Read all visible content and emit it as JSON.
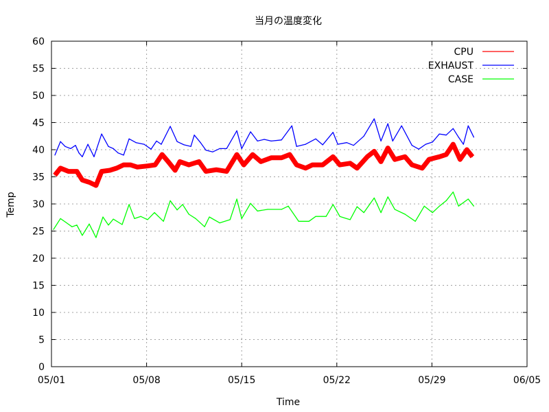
{
  "chart_data": {
    "type": "line",
    "title": "当月の温度変化",
    "xlabel": "Time",
    "ylabel": "Temp",
    "ylim": [
      0,
      60
    ],
    "xlim_days": [
      0,
      35
    ],
    "x_unit": "days since 05/01",
    "yticks": [
      "0",
      "5",
      "10",
      "15",
      "20",
      "25",
      "30",
      "35",
      "40",
      "45",
      "50",
      "55",
      "60"
    ],
    "xticks": [
      {
        "day": 0,
        "label": "05/01"
      },
      {
        "day": 7,
        "label": "05/08"
      },
      {
        "day": 14,
        "label": "05/15"
      },
      {
        "day": 21,
        "label": "05/22"
      },
      {
        "day": 28,
        "label": "05/29"
      },
      {
        "day": 35,
        "label": "06/05"
      }
    ],
    "grid": true,
    "legend_position": "top-right",
    "series": [
      {
        "name": "CPU",
        "color": "#ff0000",
        "noisy": true,
        "x": [
          0.25,
          0.66,
          1.26,
          1.87,
          2.27,
          2.78,
          3.28,
          3.69,
          4.3,
          4.8,
          5.31,
          5.81,
          6.32,
          7.07,
          7.63,
          8.14,
          8.59,
          9.1,
          9.45,
          10.11,
          10.86,
          11.37,
          12.13,
          12.89,
          13.64,
          14.15,
          14.81,
          15.41,
          16.17,
          16.93,
          17.53,
          18.04,
          18.7,
          19.2,
          19.96,
          20.72,
          21.22,
          21.98,
          22.49,
          23.24,
          23.75,
          24.25,
          24.76,
          25.27,
          26.02,
          26.53,
          27.29,
          27.79,
          28.55,
          29.05,
          29.56,
          30.07,
          30.57,
          30.98
        ],
        "y": [
          35.3,
          36.6,
          36.0,
          36.0,
          34.4,
          34.0,
          33.4,
          36.0,
          36.2,
          36.6,
          37.2,
          37.2,
          36.8,
          37.0,
          37.2,
          39.1,
          37.8,
          36.2,
          37.8,
          37.2,
          37.8,
          36.0,
          36.3,
          36.0,
          39.1,
          37.2,
          39.1,
          37.8,
          38.5,
          38.5,
          39.1,
          37.2,
          36.6,
          37.2,
          37.2,
          38.7,
          37.2,
          37.5,
          36.6,
          38.7,
          39.7,
          37.8,
          40.3,
          38.2,
          38.7,
          37.2,
          36.6,
          38.2,
          38.7,
          39.1,
          41.0,
          38.2,
          40.0,
          38.7
        ]
      },
      {
        "name": "EXHAUST",
        "color": "#0000ff",
        "noisy": false,
        "x": [
          0.25,
          0.66,
          1.01,
          1.41,
          1.77,
          2.02,
          2.27,
          2.68,
          3.13,
          3.69,
          4.19,
          4.55,
          4.9,
          5.31,
          5.71,
          6.22,
          6.82,
          7.33,
          7.73,
          8.08,
          8.74,
          9.25,
          9.75,
          10.26,
          10.51,
          10.97,
          11.37,
          11.87,
          12.38,
          12.89,
          13.64,
          14.0,
          14.65,
          15.16,
          15.66,
          16.17,
          16.93,
          17.69,
          18.04,
          18.7,
          19.45,
          19.96,
          20.72,
          21.07,
          21.73,
          22.23,
          22.99,
          23.75,
          24.25,
          24.76,
          25.11,
          25.77,
          26.53,
          27.03,
          27.54,
          28.04,
          28.55,
          29.05,
          29.56,
          29.96,
          30.32,
          30.67,
          31.08
        ],
        "y": [
          39.0,
          41.5,
          40.6,
          40.2,
          40.8,
          39.4,
          38.7,
          41.0,
          38.7,
          42.9,
          40.6,
          40.2,
          39.4,
          39.0,
          42.0,
          41.3,
          41.0,
          40.1,
          41.6,
          41.0,
          44.3,
          41.5,
          40.9,
          40.6,
          42.7,
          41.3,
          39.9,
          39.6,
          40.2,
          40.2,
          43.5,
          40.2,
          43.3,
          41.6,
          41.9,
          41.6,
          41.8,
          44.4,
          40.6,
          41.0,
          42.0,
          40.9,
          43.2,
          41.0,
          41.3,
          40.8,
          42.5,
          45.7,
          41.6,
          44.8,
          41.6,
          44.4,
          40.8,
          40.1,
          41.0,
          41.4,
          42.9,
          42.7,
          43.9,
          42.3,
          41.0,
          44.4,
          42.3
        ]
      },
      {
        "name": "CASE",
        "color": "#00ff00",
        "noisy": false,
        "x": [
          0.15,
          0.66,
          1.01,
          1.51,
          1.87,
          2.27,
          2.78,
          3.28,
          3.79,
          4.19,
          4.55,
          5.2,
          5.71,
          6.11,
          6.57,
          7.07,
          7.58,
          8.24,
          8.74,
          9.25,
          9.65,
          10.11,
          10.61,
          11.27,
          11.62,
          12.38,
          13.14,
          13.64,
          14.0,
          14.65,
          15.16,
          15.92,
          16.93,
          17.43,
          18.19,
          18.95,
          19.45,
          20.21,
          20.72,
          21.22,
          21.98,
          22.49,
          22.99,
          23.75,
          24.25,
          24.76,
          25.27,
          26.02,
          26.78,
          27.44,
          28.04,
          28.55,
          29.05,
          29.56,
          29.96,
          30.67,
          31.08
        ],
        "y": [
          25.3,
          27.3,
          26.7,
          25.8,
          26.1,
          24.2,
          26.3,
          23.8,
          27.6,
          26.1,
          27.2,
          26.2,
          29.9,
          27.3,
          27.7,
          27.1,
          28.4,
          26.8,
          30.6,
          28.9,
          29.9,
          28.1,
          27.3,
          25.8,
          27.6,
          26.5,
          27.1,
          30.9,
          27.3,
          30.1,
          28.7,
          29.0,
          29.0,
          29.6,
          26.8,
          26.8,
          27.7,
          27.7,
          29.9,
          27.7,
          27.1,
          29.5,
          28.4,
          31.1,
          28.4,
          31.3,
          29.0,
          28.1,
          26.8,
          29.6,
          28.4,
          29.6,
          30.6,
          32.2,
          29.6,
          30.9,
          29.6
        ]
      }
    ]
  }
}
